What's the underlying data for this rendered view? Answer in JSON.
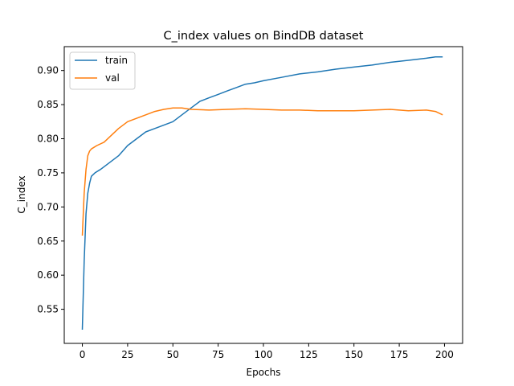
{
  "chart_data": {
    "type": "line",
    "title": "C_index values on BindDB dataset",
    "xlabel": "Epochs",
    "ylabel": "C_index",
    "xlim": [
      -10,
      210
    ],
    "ylim": [
      0.5,
      0.935
    ],
    "xticks": [
      0,
      25,
      50,
      75,
      100,
      125,
      150,
      175,
      200
    ],
    "xtick_labels": [
      "0",
      "25",
      "50",
      "75",
      "100",
      "125",
      "150",
      "175",
      "200"
    ],
    "yticks": [
      0.55,
      0.6,
      0.65,
      0.7,
      0.75,
      0.8,
      0.85,
      0.9
    ],
    "ytick_labels": [
      "0.55",
      "0.60",
      "0.65",
      "0.70",
      "0.75",
      "0.80",
      "0.85",
      "0.90"
    ],
    "grid": false,
    "legend_position": "top-left",
    "series": [
      {
        "name": "train",
        "color": "#1f77b4",
        "points": [
          [
            0,
            0.52
          ],
          [
            1,
            0.62
          ],
          [
            2,
            0.69
          ],
          [
            3,
            0.72
          ],
          [
            4,
            0.735
          ],
          [
            5,
            0.745
          ],
          [
            7,
            0.75
          ],
          [
            10,
            0.755
          ],
          [
            15,
            0.765
          ],
          [
            20,
            0.775
          ],
          [
            25,
            0.79
          ],
          [
            30,
            0.8
          ],
          [
            35,
            0.81
          ],
          [
            40,
            0.815
          ],
          [
            45,
            0.82
          ],
          [
            50,
            0.825
          ],
          [
            55,
            0.835
          ],
          [
            60,
            0.845
          ],
          [
            65,
            0.855
          ],
          [
            70,
            0.86
          ],
          [
            75,
            0.865
          ],
          [
            80,
            0.87
          ],
          [
            85,
            0.875
          ],
          [
            90,
            0.88
          ],
          [
            95,
            0.882
          ],
          [
            100,
            0.885
          ],
          [
            110,
            0.89
          ],
          [
            120,
            0.895
          ],
          [
            130,
            0.898
          ],
          [
            140,
            0.902
          ],
          [
            150,
            0.905
          ],
          [
            160,
            0.908
          ],
          [
            170,
            0.912
          ],
          [
            180,
            0.915
          ],
          [
            190,
            0.918
          ],
          [
            195,
            0.92
          ],
          [
            199,
            0.92
          ]
        ]
      },
      {
        "name": "val",
        "color": "#ff7f0e",
        "points": [
          [
            0,
            0.658
          ],
          [
            1,
            0.72
          ],
          [
            2,
            0.755
          ],
          [
            3,
            0.775
          ],
          [
            4,
            0.782
          ],
          [
            5,
            0.785
          ],
          [
            8,
            0.79
          ],
          [
            12,
            0.795
          ],
          [
            16,
            0.805
          ],
          [
            20,
            0.815
          ],
          [
            25,
            0.825
          ],
          [
            30,
            0.83
          ],
          [
            35,
            0.835
          ],
          [
            40,
            0.84
          ],
          [
            45,
            0.843
          ],
          [
            50,
            0.845
          ],
          [
            55,
            0.845
          ],
          [
            60,
            0.843
          ],
          [
            70,
            0.842
          ],
          [
            80,
            0.843
          ],
          [
            90,
            0.844
          ],
          [
            100,
            0.843
          ],
          [
            110,
            0.842
          ],
          [
            120,
            0.842
          ],
          [
            130,
            0.841
          ],
          [
            140,
            0.841
          ],
          [
            150,
            0.841
          ],
          [
            160,
            0.842
          ],
          [
            170,
            0.843
          ],
          [
            180,
            0.841
          ],
          [
            190,
            0.842
          ],
          [
            195,
            0.84
          ],
          [
            199,
            0.835
          ]
        ]
      }
    ]
  }
}
